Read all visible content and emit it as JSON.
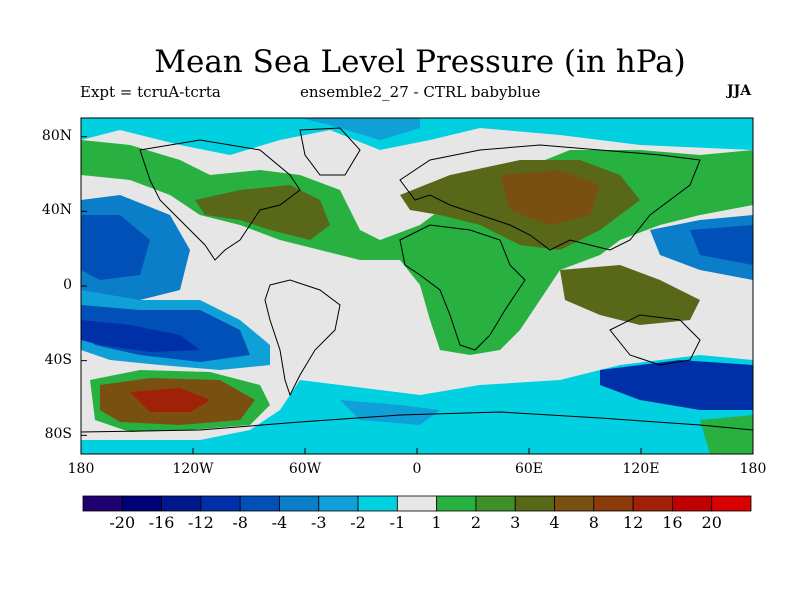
{
  "title": "Mean Sea Level Pressure (in hPa)",
  "subtitle_left": "Expt = tcruA-tcrta",
  "subtitle_center": "ensemble2_27 - CTRL babyblue",
  "subtitle_right": "JJA",
  "y_ticks": [
    "80N",
    "40N",
    "0",
    "40S",
    "80S"
  ],
  "x_ticks": [
    "180",
    "120W",
    "60W",
    "0",
    "60E",
    "120E",
    "180"
  ],
  "colorbar": {
    "labels": [
      "-20",
      "-16",
      "-12",
      "-8",
      "-4",
      "-3",
      "-2",
      "-1",
      "1",
      "2",
      "3",
      "4",
      "8",
      "12",
      "16",
      "20"
    ],
    "colors": [
      "#20006e",
      "#000078",
      "#00188c",
      "#0030a8",
      "#0050b8",
      "#0a7ec8",
      "#10a0d8",
      "#00d0e0",
      "#e6e6e6",
      "#28b040",
      "#40902a",
      "#586818",
      "#7a5010",
      "#8c3a0c",
      "#a02008",
      "#c00000",
      "#d80000"
    ]
  }
}
